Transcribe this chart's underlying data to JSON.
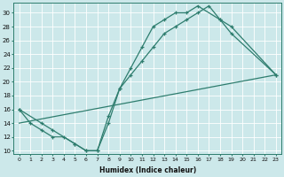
{
  "xlabel": "Humidex (Indice chaleur)",
  "xlim": [
    -0.5,
    23.5
  ],
  "ylim": [
    9.5,
    31.5
  ],
  "xticks": [
    0,
    1,
    2,
    3,
    4,
    5,
    6,
    7,
    8,
    9,
    10,
    11,
    12,
    13,
    14,
    15,
    16,
    17,
    18,
    19,
    20,
    21,
    22,
    23
  ],
  "yticks": [
    10,
    12,
    14,
    16,
    18,
    20,
    22,
    24,
    26,
    28,
    30
  ],
  "background_color": "#cce8ea",
  "line_color": "#2e7d6e",
  "grid_color": "#b0d8d8",
  "curve1_x": [
    0,
    1,
    2,
    3,
    4,
    5,
    6,
    7,
    8,
    9,
    10,
    11,
    12,
    13,
    14,
    15,
    16,
    18,
    19,
    23
  ],
  "curve1_y": [
    16,
    14,
    13,
    12,
    12,
    11,
    10,
    10,
    14,
    19,
    22,
    25,
    28,
    29,
    30,
    30,
    31,
    29,
    28,
    21
  ],
  "curve2_x": [
    0,
    2,
    3,
    5,
    6,
    7,
    8,
    9,
    10,
    11,
    12,
    13,
    14,
    15,
    16,
    17,
    18,
    19,
    23
  ],
  "curve2_y": [
    16,
    14,
    13,
    11,
    10,
    10,
    15,
    19,
    21,
    23,
    25,
    27,
    28,
    29,
    30,
    31,
    29,
    27,
    21
  ],
  "line_x": [
    0,
    23
  ],
  "line_y": [
    14,
    21
  ]
}
